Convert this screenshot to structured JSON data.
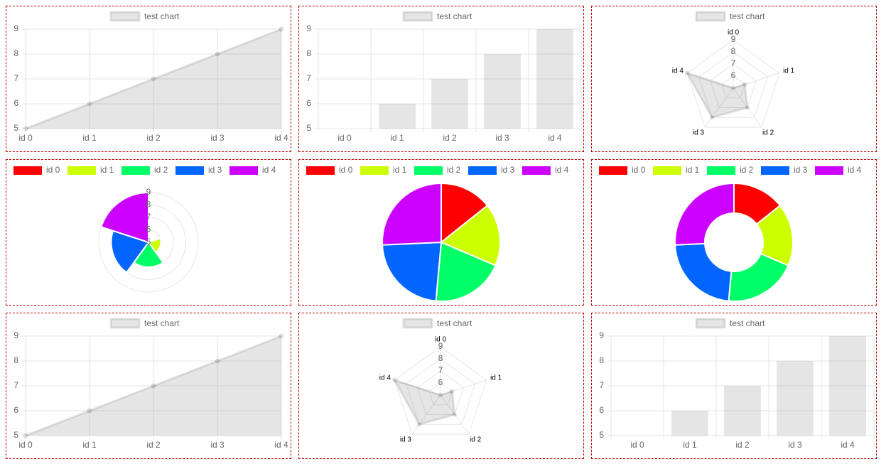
{
  "chart_data": [
    {
      "type": "line",
      "categories": [
        "id 0",
        "id 1",
        "id 2",
        "id 3",
        "id 4"
      ],
      "series": [
        {
          "name": "test chart",
          "color": "rgba(0,0,0,0.1)",
          "values": [
            5,
            6,
            7,
            8,
            9
          ]
        }
      ],
      "ylim": [
        5,
        9
      ],
      "yticks": [
        5,
        6,
        7,
        8,
        9
      ],
      "grid": true
    },
    {
      "type": "bar",
      "categories": [
        "id 0",
        "id 1",
        "id 2",
        "id 3",
        "id 4"
      ],
      "series": [
        {
          "name": "test chart",
          "color": "rgba(0,0,0,0.1)",
          "values": [
            5,
            6,
            7,
            8,
            9
          ]
        }
      ],
      "ylim": [
        5,
        9
      ],
      "yticks": [
        5,
        6,
        7,
        8,
        9
      ],
      "grid": true
    },
    {
      "type": "radar",
      "categories": [
        "id 0",
        "id 1",
        "id 2",
        "id 3",
        "id 4"
      ],
      "series": [
        {
          "name": "test chart",
          "color": "rgba(0,0,0,0.1)",
          "values": [
            5,
            6,
            7,
            8,
            9
          ]
        }
      ],
      "rlim": [
        5,
        9
      ],
      "rticks": [
        6,
        7,
        8,
        9
      ],
      "grid": true
    },
    {
      "type": "polarArea",
      "categories": [
        "id 0",
        "id 1",
        "id 2",
        "id 3",
        "id 4"
      ],
      "values": [
        5,
        6,
        7,
        8,
        9
      ],
      "colors": [
        "#ff0000",
        "#ccff00",
        "#00ff66",
        "#0066ff",
        "#cc00ff"
      ],
      "rlim": [
        5,
        9
      ],
      "rticks": [
        5,
        6,
        7,
        8,
        9
      ],
      "grid": true
    },
    {
      "type": "pie",
      "categories": [
        "id 0",
        "id 1",
        "id 2",
        "id 3",
        "id 4"
      ],
      "values": [
        5,
        6,
        7,
        8,
        9
      ],
      "colors": [
        "#ff0000",
        "#ccff00",
        "#00ff66",
        "#0066ff",
        "#cc00ff"
      ]
    },
    {
      "type": "doughnut",
      "categories": [
        "id 0",
        "id 1",
        "id 2",
        "id 3",
        "id 4"
      ],
      "values": [
        5,
        6,
        7,
        8,
        9
      ],
      "colors": [
        "#ff0000",
        "#ccff00",
        "#00ff66",
        "#0066ff",
        "#cc00ff"
      ]
    },
    {
      "type": "line",
      "categories": [
        "id 0",
        "id 1",
        "id 2",
        "id 3",
        "id 4"
      ],
      "series": [
        {
          "name": "test chart",
          "color": "rgba(0,0,0,0.1)",
          "values": [
            5,
            6,
            7,
            8,
            9
          ]
        }
      ],
      "ylim": [
        5,
        9
      ],
      "yticks": [
        5,
        6,
        7,
        8,
        9
      ],
      "grid": true
    },
    {
      "type": "radar",
      "categories": [
        "id 0",
        "id 1",
        "id 2",
        "id 3",
        "id 4"
      ],
      "series": [
        {
          "name": "test chart",
          "color": "rgba(0,0,0,0.1)",
          "values": [
            5,
            6,
            7,
            8,
            9
          ]
        }
      ],
      "rlim": [
        5,
        9
      ],
      "rticks": [
        6,
        7,
        8,
        9
      ],
      "grid": true
    },
    {
      "type": "bar",
      "categories": [
        "id 0",
        "id 1",
        "id 2",
        "id 3",
        "id 4"
      ],
      "series": [
        {
          "name": "test chart",
          "color": "rgba(0,0,0,0.1)",
          "values": [
            5,
            6,
            7,
            8,
            9
          ]
        }
      ],
      "ylim": [
        5,
        9
      ],
      "yticks": [
        5,
        6,
        7,
        8,
        9
      ],
      "grid": true
    }
  ]
}
